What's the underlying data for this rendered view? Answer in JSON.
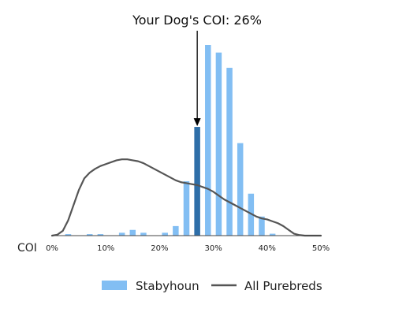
{
  "chart_data": {
    "type": "bar",
    "title": "Your Dog's COI: 26%",
    "xlabel": "COI",
    "ylabel": "",
    "xlim": [
      0,
      50
    ],
    "ylim": [
      0,
      100
    ],
    "x_ticks": [
      "0%",
      "10%",
      "20%",
      "30%",
      "40%",
      "50%"
    ],
    "x_tick_values": [
      0,
      10,
      20,
      30,
      40,
      50
    ],
    "grid": false,
    "legend_position": "bottom",
    "highlight": {
      "x": 27,
      "value": 57
    },
    "series": [
      {
        "name": "Stabyhoun",
        "kind": "bar",
        "color": "#82bef3",
        "highlight_color": "#2e6ea8",
        "x": [
          3,
          7,
          9,
          13,
          15,
          17,
          21,
          23,
          25,
          27,
          29,
          31,
          33,
          35,
          37,
          39,
          41
        ],
        "values": [
          0.8,
          0.8,
          0.8,
          1.5,
          3,
          1.5,
          1.5,
          5,
          28.5,
          57,
          100,
          96,
          88,
          48.5,
          22,
          10,
          1
        ]
      },
      {
        "name": "All Purebreds",
        "kind": "line",
        "color": "#555555",
        "x": [
          0,
          1,
          2,
          3,
          4,
          5,
          6,
          7,
          8,
          9,
          10,
          11,
          12,
          13,
          14,
          15,
          16,
          17,
          18,
          19,
          20,
          21,
          22,
          23,
          24,
          25,
          26,
          27,
          28,
          29,
          30,
          31,
          32,
          33,
          34,
          35,
          36,
          37,
          38,
          39,
          40,
          41,
          42,
          43,
          44,
          45,
          46,
          47,
          48,
          49,
          50
        ],
        "values": [
          0,
          0.5,
          2.5,
          8,
          16,
          24,
          30,
          33,
          35,
          36.5,
          37.5,
          38.5,
          39.5,
          40,
          40,
          39.5,
          39,
          38,
          36.5,
          35,
          33.5,
          32,
          30.5,
          29,
          28,
          27.5,
          27,
          26.5,
          25.5,
          24.5,
          23,
          21,
          19,
          17.5,
          16,
          14.5,
          13,
          11.5,
          10,
          9,
          8.5,
          7.5,
          6.5,
          5,
          3,
          1,
          0.3,
          0,
          0,
          0,
          0
        ]
      }
    ]
  }
}
